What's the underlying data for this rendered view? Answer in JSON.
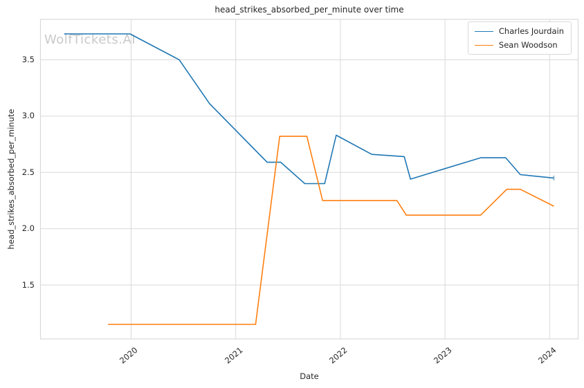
{
  "watermark": "WolfTickets.AI",
  "chart_data": {
    "type": "line",
    "title": "head_strikes_absorbed_per_minute over time",
    "xlabel": "Date",
    "ylabel": "head_strikes_absorbed_per_minute",
    "x_unit": "decimal_year",
    "xlim": [
      2019.134,
      2024.272
    ],
    "ylim": [
      1.021,
      3.859
    ],
    "x_ticks": [
      2020,
      2021,
      2022,
      2023,
      2024
    ],
    "y_ticks": [
      1.5,
      2.0,
      2.5,
      3.0,
      3.5
    ],
    "grid": true,
    "legend_position": "upper right",
    "series": [
      {
        "name": "Charles Jourdain",
        "color": "#1f77b4",
        "end_cap": true,
        "points": [
          [
            2019.36,
            3.73
          ],
          [
            2019.99,
            3.73
          ],
          [
            2020.46,
            3.5
          ],
          [
            2020.75,
            3.11
          ],
          [
            2021.3,
            2.59
          ],
          [
            2021.43,
            2.59
          ],
          [
            2021.66,
            2.4
          ],
          [
            2021.85,
            2.4
          ],
          [
            2021.96,
            2.83
          ],
          [
            2022.3,
            2.66
          ],
          [
            2022.61,
            2.64
          ],
          [
            2022.67,
            2.44
          ],
          [
            2023.34,
            2.63
          ],
          [
            2023.58,
            2.63
          ],
          [
            2023.72,
            2.48
          ],
          [
            2024.04,
            2.45
          ]
        ]
      },
      {
        "name": "Sean Woodson",
        "color": "#ff7f0e",
        "end_cap": false,
        "points": [
          [
            2019.78,
            1.15
          ],
          [
            2021.19,
            1.15
          ],
          [
            2021.42,
            2.82
          ],
          [
            2021.68,
            2.82
          ],
          [
            2021.83,
            2.25
          ],
          [
            2022.54,
            2.25
          ],
          [
            2022.63,
            2.12
          ],
          [
            2023.34,
            2.12
          ],
          [
            2023.59,
            2.35
          ],
          [
            2023.72,
            2.35
          ],
          [
            2024.04,
            2.2
          ]
        ]
      }
    ],
    "colors": {
      "grid": "#d9d9d9",
      "spine": "#d9d9d9",
      "text": "#262626",
      "watermark": "#c9c9c9",
      "background": "#ffffff"
    }
  }
}
